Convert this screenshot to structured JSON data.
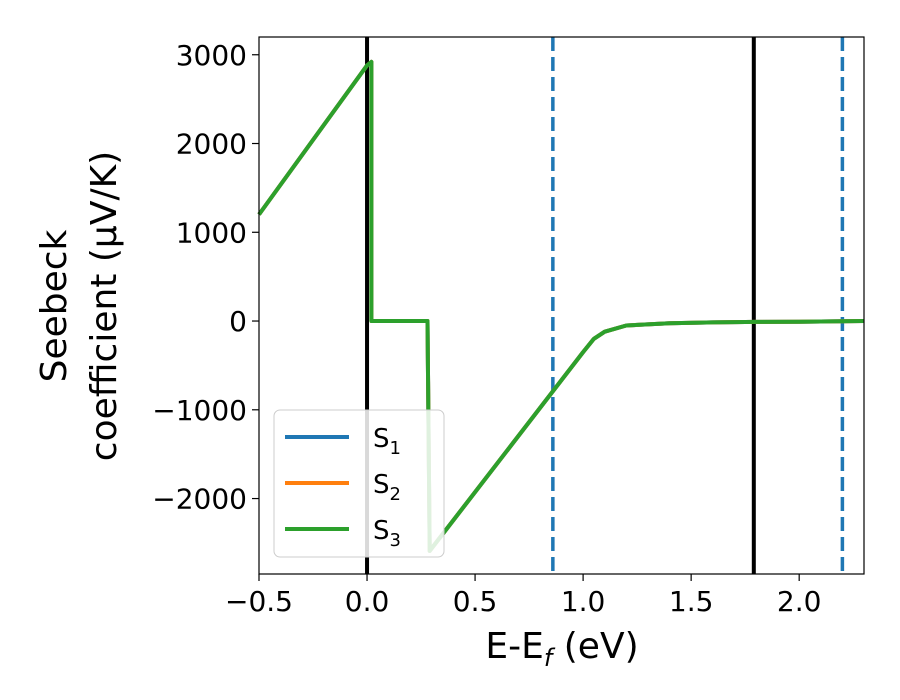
{
  "chart_data": {
    "type": "line",
    "title": "",
    "xlabel": {
      "main": "E-E",
      "sub": "f",
      "suffix": " (eV)"
    },
    "ylabel": {
      "line1": "Seebeck",
      "line2": "coefficient  (μV/K)"
    },
    "xlim": [
      -0.5,
      2.3
    ],
    "ylim": [
      -2850,
      3200
    ],
    "xticks": [
      -0.5,
      0.0,
      0.5,
      1.0,
      1.5,
      2.0
    ],
    "xtick_labels": [
      "−0.5",
      "0.0",
      "0.5",
      "1.0",
      "1.5",
      "2.0"
    ],
    "yticks": [
      -2000,
      -1000,
      0,
      1000,
      2000,
      3000
    ],
    "ytick_labels": [
      "−2000",
      "−1000",
      "0",
      "1000",
      "2000",
      "3000"
    ],
    "grid": false,
    "legend_position": "lower-left",
    "vlines": [
      {
        "x": 0.0,
        "style": "solid",
        "color": "#000000"
      },
      {
        "x": 1.79,
        "style": "solid",
        "color": "#000000"
      },
      {
        "x": 0.86,
        "style": "dashed",
        "color": "#1f77b4"
      },
      {
        "x": 2.2,
        "style": "dashed",
        "color": "#1f77b4"
      }
    ],
    "series": [
      {
        "name": "S",
        "sub": "1",
        "color": "#1f77b4",
        "x": [
          -0.5,
          0.0,
          0.02,
          0.02,
          0.28,
          0.29,
          1.0,
          1.05,
          1.1,
          1.2,
          1.4,
          1.6,
          1.8,
          2.0,
          2.1,
          2.2,
          2.3
        ],
        "y": [
          1200,
          2880,
          2920,
          0,
          0,
          -2590,
          -350,
          -200,
          -120,
          -50,
          -25,
          -15,
          -10,
          -8,
          -5,
          -3,
          0
        ]
      },
      {
        "name": "S",
        "sub": "2",
        "color": "#ff7f0e",
        "x": [
          -0.5,
          0.0,
          0.02,
          0.02,
          0.28,
          0.29,
          1.0,
          1.05,
          1.1,
          1.2,
          1.4,
          1.6,
          1.8,
          2.0,
          2.1,
          2.2,
          2.3
        ],
        "y": [
          1200,
          2880,
          2920,
          0,
          0,
          -2590,
          -350,
          -200,
          -120,
          -50,
          -25,
          -15,
          -10,
          -8,
          -5,
          -3,
          0
        ]
      },
      {
        "name": "S",
        "sub": "3",
        "color": "#2ca02c",
        "x": [
          -0.5,
          0.0,
          0.02,
          0.02,
          0.28,
          0.29,
          1.0,
          1.05,
          1.1,
          1.2,
          1.4,
          1.6,
          1.8,
          2.0,
          2.1,
          2.2,
          2.3
        ],
        "y": [
          1200,
          2880,
          2920,
          0,
          0,
          -2590,
          -350,
          -200,
          -120,
          -50,
          -25,
          -15,
          -10,
          -8,
          -5,
          -3,
          0
        ]
      }
    ]
  }
}
